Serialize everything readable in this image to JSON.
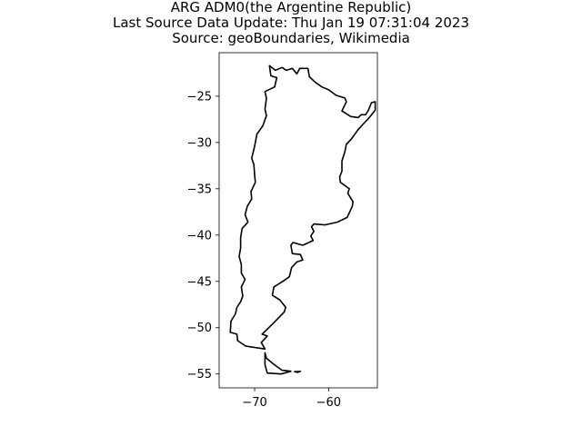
{
  "title": {
    "line1": "ARG ADM0(the Argentine Republic)",
    "line2": "Last Source Data Update: Thu Jan 19 07:31:04 2023",
    "line3": "Source: geoBoundaries, Wikimedia"
  },
  "chart_data": {
    "type": "map",
    "xlim": [
      -74.8,
      -53.4
    ],
    "ylim": [
      -56.5,
      -20.3
    ],
    "xticks": [
      -70,
      -60
    ],
    "xtick_labels": [
      "−70",
      "−60"
    ],
    "yticks": [
      -25,
      -30,
      -35,
      -40,
      -45,
      -50,
      -55
    ],
    "ytick_labels": [
      "−25",
      "−30",
      "−35",
      "−40",
      "−45",
      "−50",
      "−55"
    ],
    "grid": false,
    "line_color": "#000000",
    "mainland_outline": [
      [
        -68.0,
        -21.7
      ],
      [
        -67.2,
        -22.2
      ],
      [
        -66.3,
        -21.9
      ],
      [
        -65.7,
        -22.2
      ],
      [
        -64.9,
        -22.0
      ],
      [
        -64.3,
        -22.6
      ],
      [
        -63.9,
        -22.0
      ],
      [
        -62.8,
        -22.0
      ],
      [
        -62.6,
        -22.9
      ],
      [
        -61.8,
        -23.5
      ],
      [
        -60.9,
        -24.0
      ],
      [
        -60.0,
        -24.3
      ],
      [
        -59.0,
        -24.9
      ],
      [
        -57.8,
        -25.2
      ],
      [
        -57.6,
        -25.6
      ],
      [
        -58.2,
        -26.6
      ],
      [
        -57.0,
        -27.2
      ],
      [
        -56.0,
        -27.3
      ],
      [
        -55.6,
        -27.0
      ],
      [
        -55.0,
        -27.0
      ],
      [
        -54.6,
        -26.5
      ],
      [
        -54.2,
        -25.7
      ],
      [
        -53.7,
        -25.6
      ],
      [
        -53.7,
        -26.5
      ],
      [
        -54.5,
        -27.3
      ],
      [
        -55.2,
        -27.9
      ],
      [
        -56.0,
        -28.6
      ],
      [
        -56.9,
        -29.6
      ],
      [
        -57.6,
        -30.2
      ],
      [
        -57.8,
        -31.0
      ],
      [
        -58.2,
        -32.0
      ],
      [
        -58.2,
        -33.1
      ],
      [
        -58.5,
        -33.7
      ],
      [
        -58.4,
        -34.3
      ],
      [
        -57.2,
        -35.0
      ],
      [
        -57.4,
        -35.5
      ],
      [
        -56.7,
        -36.4
      ],
      [
        -56.8,
        -36.9
      ],
      [
        -57.5,
        -38.1
      ],
      [
        -58.8,
        -38.6
      ],
      [
        -60.5,
        -38.9
      ],
      [
        -62.0,
        -38.8
      ],
      [
        -62.3,
        -39.1
      ],
      [
        -62.0,
        -39.6
      ],
      [
        -62.4,
        -40.1
      ],
      [
        -62.1,
        -40.6
      ],
      [
        -63.5,
        -41.1
      ],
      [
        -64.8,
        -40.8
      ],
      [
        -65.1,
        -41.1
      ],
      [
        -64.9,
        -42.0
      ],
      [
        -63.8,
        -42.1
      ],
      [
        -63.5,
        -42.7
      ],
      [
        -64.3,
        -42.9
      ],
      [
        -65.0,
        -43.5
      ],
      [
        -65.3,
        -44.5
      ],
      [
        -66.2,
        -45.0
      ],
      [
        -67.4,
        -45.6
      ],
      [
        -67.6,
        -46.5
      ],
      [
        -66.6,
        -47.0
      ],
      [
        -65.8,
        -47.8
      ],
      [
        -66.0,
        -48.3
      ],
      [
        -67.2,
        -49.3
      ],
      [
        -67.7,
        -49.7
      ],
      [
        -69.0,
        -50.7
      ],
      [
        -68.3,
        -50.9
      ],
      [
        -69.1,
        -51.6
      ],
      [
        -68.6,
        -52.3
      ],
      [
        -71.2,
        -52.0
      ],
      [
        -72.3,
        -51.4
      ],
      [
        -72.4,
        -50.7
      ],
      [
        -73.3,
        -50.5
      ],
      [
        -73.2,
        -49.3
      ],
      [
        -72.6,
        -48.5
      ],
      [
        -72.4,
        -47.8
      ],
      [
        -71.9,
        -47.2
      ],
      [
        -71.6,
        -46.6
      ],
      [
        -71.8,
        -45.6
      ],
      [
        -71.3,
        -44.8
      ],
      [
        -71.8,
        -44.1
      ],
      [
        -71.8,
        -43.2
      ],
      [
        -72.1,
        -42.3
      ],
      [
        -71.9,
        -41.4
      ],
      [
        -71.9,
        -40.3
      ],
      [
        -71.7,
        -39.3
      ],
      [
        -70.9,
        -38.6
      ],
      [
        -71.3,
        -37.8
      ],
      [
        -71.0,
        -36.9
      ],
      [
        -70.4,
        -36.1
      ],
      [
        -70.5,
        -35.3
      ],
      [
        -69.9,
        -34.3
      ],
      [
        -70.0,
        -33.5
      ],
      [
        -70.1,
        -32.4
      ],
      [
        -70.4,
        -31.7
      ],
      [
        -70.0,
        -30.4
      ],
      [
        -69.7,
        -29.1
      ],
      [
        -68.9,
        -28.2
      ],
      [
        -68.4,
        -27.1
      ],
      [
        -68.6,
        -26.4
      ],
      [
        -68.4,
        -25.2
      ],
      [
        -68.6,
        -24.5
      ],
      [
        -67.3,
        -24.0
      ],
      [
        -67.0,
        -23.0
      ],
      [
        -67.8,
        -22.8
      ],
      [
        -68.0,
        -21.7
      ]
    ],
    "tierra_del_fuego_outline": [
      [
        -68.6,
        -52.7
      ],
      [
        -68.4,
        -53.3
      ],
      [
        -67.5,
        -53.9
      ],
      [
        -66.3,
        -54.6
      ],
      [
        -65.1,
        -54.7
      ],
      [
        -66.4,
        -55.0
      ],
      [
        -68.3,
        -54.9
      ],
      [
        -68.6,
        -54.0
      ],
      [
        -68.6,
        -52.7
      ]
    ],
    "staten_island_outline": [
      [
        -64.6,
        -54.75
      ],
      [
        -63.8,
        -54.72
      ],
      [
        -64.2,
        -54.82
      ],
      [
        -64.6,
        -54.75
      ]
    ]
  }
}
